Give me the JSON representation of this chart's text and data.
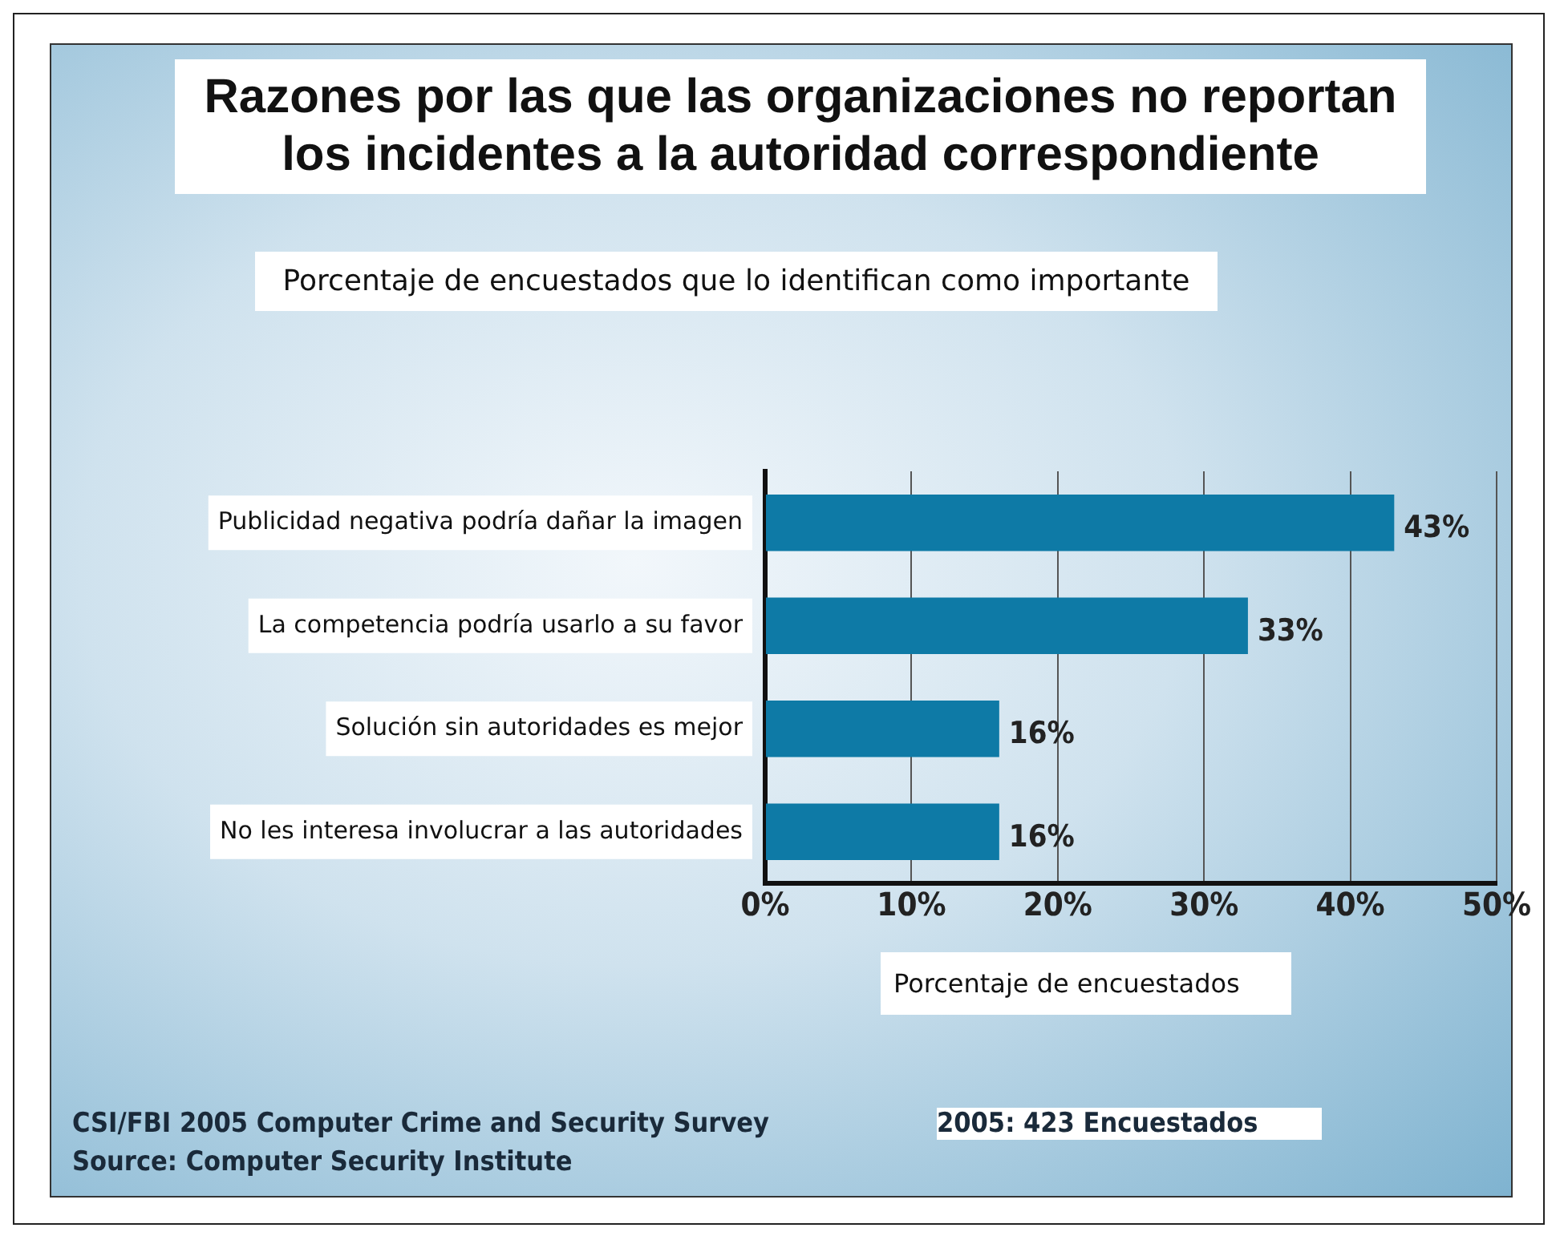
{
  "chart_data": {
    "type": "bar",
    "orientation": "horizontal",
    "title": "Razones por las que las organizaciones no reportan los incidentes a la autoridad correspondiente",
    "subtitle": "Porcentaje de encuestados que lo identifican como importante",
    "xlabel": "Porcentaje de encuestados",
    "categories": [
      "Publicidad negativa podría dañar la imagen",
      "La competencia podría usarlo a su favor",
      "Solución sin autoridades es mejor",
      "No les interesa involucrar a las autoridades"
    ],
    "values": [
      43,
      33,
      16,
      16
    ],
    "value_labels": [
      "43%",
      "33%",
      "16%",
      "16%"
    ],
    "color": "#0e7aa6",
    "xlim": [
      0,
      50
    ],
    "xticks": [
      {
        "value": 0,
        "label": "0%"
      },
      {
        "value": 10,
        "label": "10%"
      },
      {
        "value": 20,
        "label": "20%"
      },
      {
        "value": 30,
        "label": "30%"
      },
      {
        "value": 40,
        "label": "40%"
      },
      {
        "value": 50,
        "label": "50%"
      }
    ],
    "grid": "x",
    "annotations": [
      "CSI/FBI 2005 Computer Crime and Security Survey",
      "Source: Computer Security Institute",
      "2005: 423 Encuestados"
    ]
  }
}
